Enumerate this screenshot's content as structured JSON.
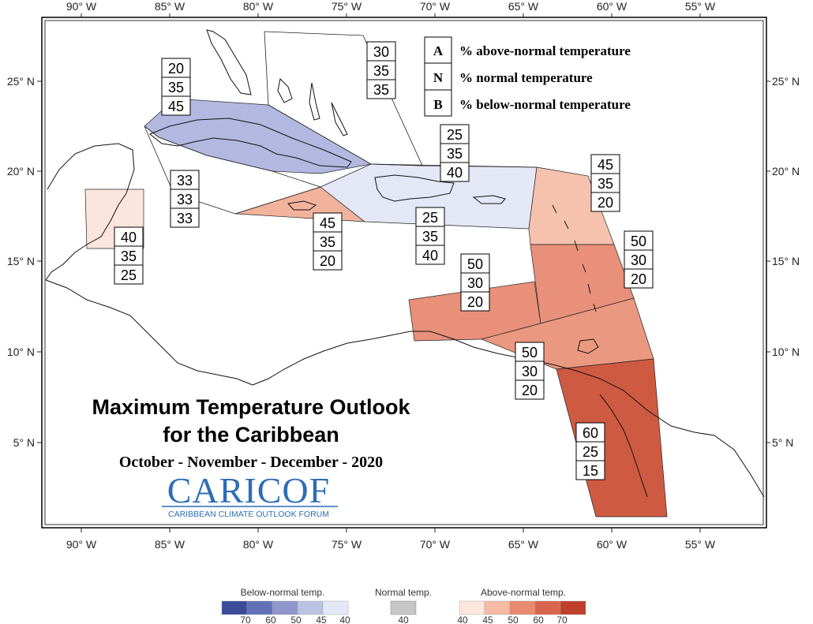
{
  "map": {
    "title_line1": "Maximum Temperature Outlook",
    "title_line2": "for the Caribbean",
    "season": "October - November - December - 2020",
    "logo_text": "CARICOF",
    "logo_subtitle": "CARIBBEAN CLIMATE OUTLOOK FORUM",
    "lon_labels": [
      "90° W",
      "85° W",
      "80° W",
      "75° W",
      "70° W",
      "65° W",
      "60° W",
      "55° W"
    ],
    "lat_labels": [
      "25° N",
      "20° N",
      "15° N",
      "10° N",
      "5° N"
    ]
  },
  "key": {
    "rows": [
      {
        "letter": "A",
        "text": "% above-normal temperature"
      },
      {
        "letter": "N",
        "text": "% normal temperature"
      },
      {
        "letter": "B",
        "text": "% below-normal temperature"
      }
    ]
  },
  "regions": [
    {
      "id": "bahamas",
      "A": "30",
      "N": "35",
      "B": "35",
      "category": "none"
    },
    {
      "id": "cuba",
      "A": "20",
      "N": "35",
      "B": "45",
      "category": "below-45"
    },
    {
      "id": "cayman",
      "A": "33",
      "N": "33",
      "B": "33",
      "category": "none"
    },
    {
      "id": "belize",
      "A": "40",
      "N": "35",
      "B": "25",
      "category": "above-40"
    },
    {
      "id": "jamaica",
      "A": "45",
      "N": "35",
      "B": "20",
      "category": "above-45"
    },
    {
      "id": "turks-caicos",
      "A": "25",
      "N": "35",
      "B": "40",
      "category": "below-40"
    },
    {
      "id": "hispaniola-pr",
      "A": "25",
      "N": "35",
      "B": "40",
      "category": "below-40"
    },
    {
      "id": "leeward",
      "A": "45",
      "N": "35",
      "B": "20",
      "category": "above-45"
    },
    {
      "id": "windward",
      "A": "50",
      "N": "30",
      "B": "20",
      "category": "above-50"
    },
    {
      "id": "abc-islands",
      "A": "50",
      "N": "30",
      "B": "20",
      "category": "above-50"
    },
    {
      "id": "trinidad",
      "A": "50",
      "N": "30",
      "B": "20",
      "category": "above-50"
    },
    {
      "id": "guianas",
      "A": "60",
      "N": "25",
      "B": "15",
      "category": "above-60"
    }
  ],
  "legend": {
    "below_title": "Below-normal temp.",
    "normal_title": "Normal temp.",
    "above_title": "Above-normal temp.",
    "below_ticks": [
      "70",
      "60",
      "50",
      "45",
      "40"
    ],
    "normal_ticks": [
      "40"
    ],
    "above_ticks": [
      "40",
      "45",
      "50",
      "60",
      "70"
    ],
    "colors": {
      "below": [
        "#3b4c99",
        "#6270b8",
        "#8f97cc",
        "#bcc2e4",
        "#e4e8f6"
      ],
      "normal": "#c6c6c6",
      "above": [
        "#fde6dc",
        "#f6bba4",
        "#e98a70",
        "#d8654c",
        "#c03f2b"
      ]
    }
  }
}
